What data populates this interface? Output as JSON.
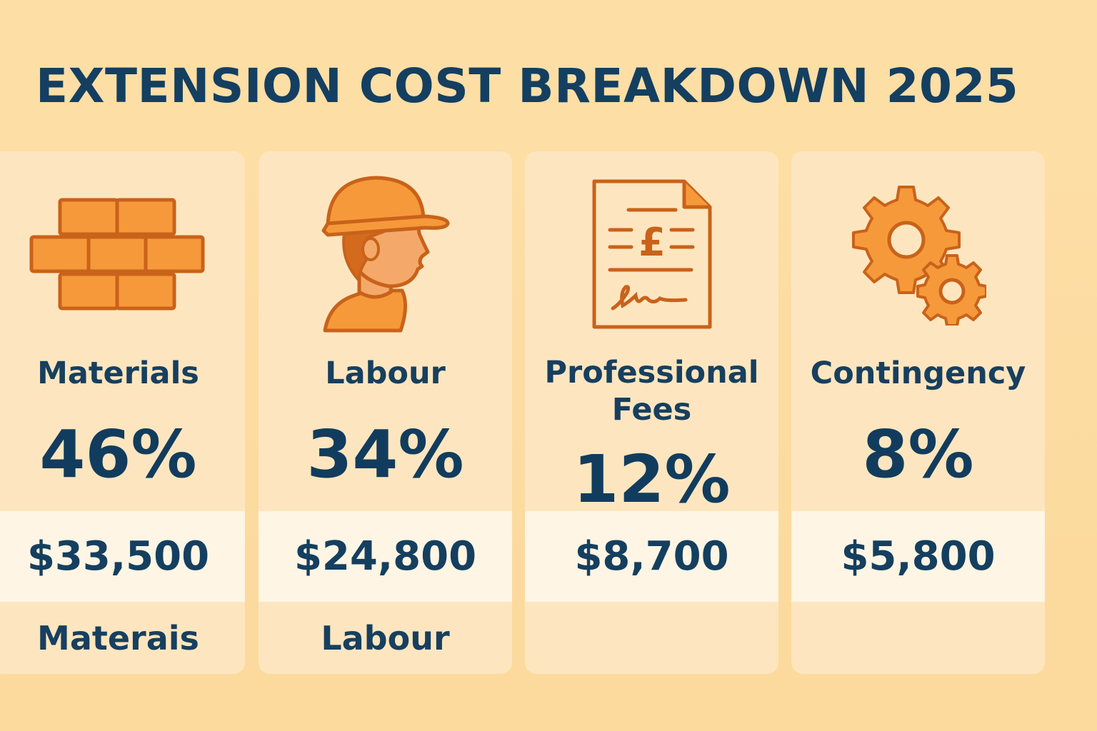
{
  "title": "EXTENSION COST BREAKDOWN 2025",
  "cards": [
    {
      "label": "Materials",
      "percent": "46%",
      "amount": "$33,500",
      "footer": "Materais",
      "icon": "brick-wall-icon"
    },
    {
      "label": "Labour",
      "percent": "34%",
      "amount": "$24,800",
      "footer": "Labour",
      "icon": "worker-hardhat-icon"
    },
    {
      "label_line1": "Professional",
      "label_line2": "Fees",
      "percent": "12%",
      "amount": "$8,700",
      "footer": "",
      "icon": "invoice-document-icon"
    },
    {
      "label": "Contingency",
      "percent": "8%",
      "amount": "$5,800",
      "footer": "",
      "icon": "gears-icon"
    }
  ],
  "colors": {
    "background": "#fddca0",
    "card": "#fde6bf",
    "amount_band": "#fef5e4",
    "text": "#173f5f",
    "icon_fill": "#f6993a",
    "icon_stroke": "#c9621a"
  }
}
